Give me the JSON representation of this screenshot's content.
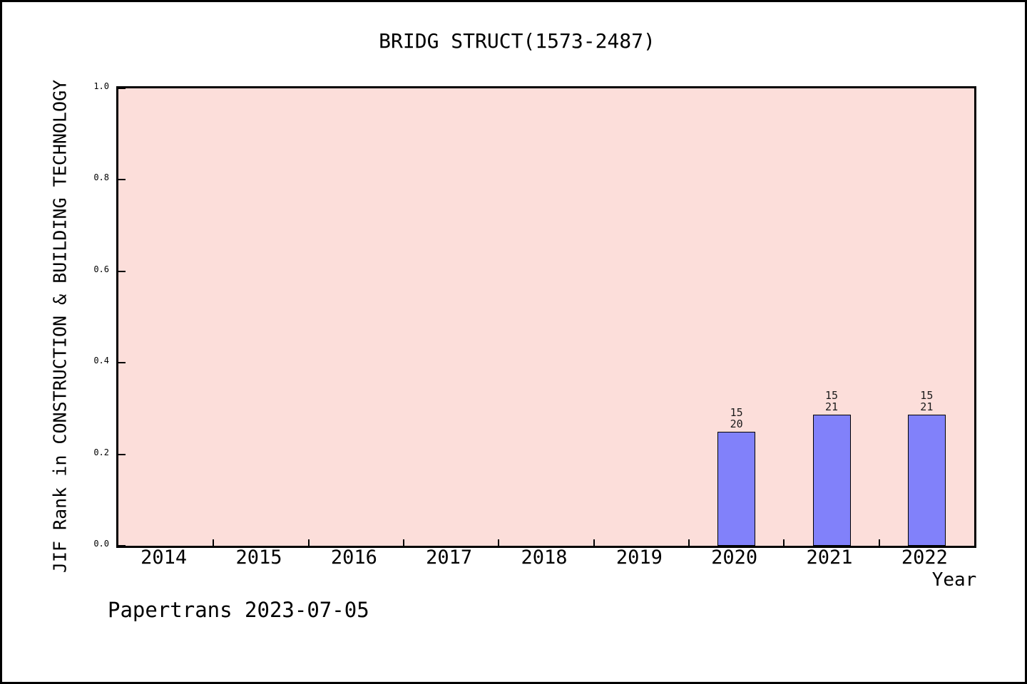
{
  "page": {
    "footer_text": "Papertrans 2023-07-05"
  },
  "chart_data": {
    "type": "bar",
    "title": "BRIDG STRUCT(1573-2487)",
    "xlabel": "Year",
    "ylabel": "JIF Rank in CONSTRUCTION & BUILDING TECHNOLOGY",
    "categories": [
      "2014",
      "2015",
      "2016",
      "2017",
      "2018",
      "2019",
      "2020",
      "2021",
      "2022"
    ],
    "values": [
      null,
      null,
      null,
      null,
      null,
      null,
      0.25,
      0.286,
      0.286
    ],
    "bar_labels": [
      null,
      null,
      null,
      null,
      null,
      null,
      [
        "15",
        "20"
      ],
      [
        "15",
        "21"
      ],
      [
        "15",
        "21"
      ]
    ],
    "yticks": [
      0.0,
      0.2,
      0.4,
      0.6,
      0.8,
      1.0
    ],
    "ytick_labels": [
      "0.0",
      "0.2",
      "0.4",
      "0.6",
      "0.8",
      "1.0"
    ],
    "ylim": [
      0.0,
      1.0
    ],
    "grid": "off",
    "legend": "none",
    "colors": {
      "plot_background": "#fcdeda",
      "bar_fill": "#8181fa",
      "bar_edge": "#000000",
      "spine": "#000000",
      "text": "#000000"
    }
  }
}
